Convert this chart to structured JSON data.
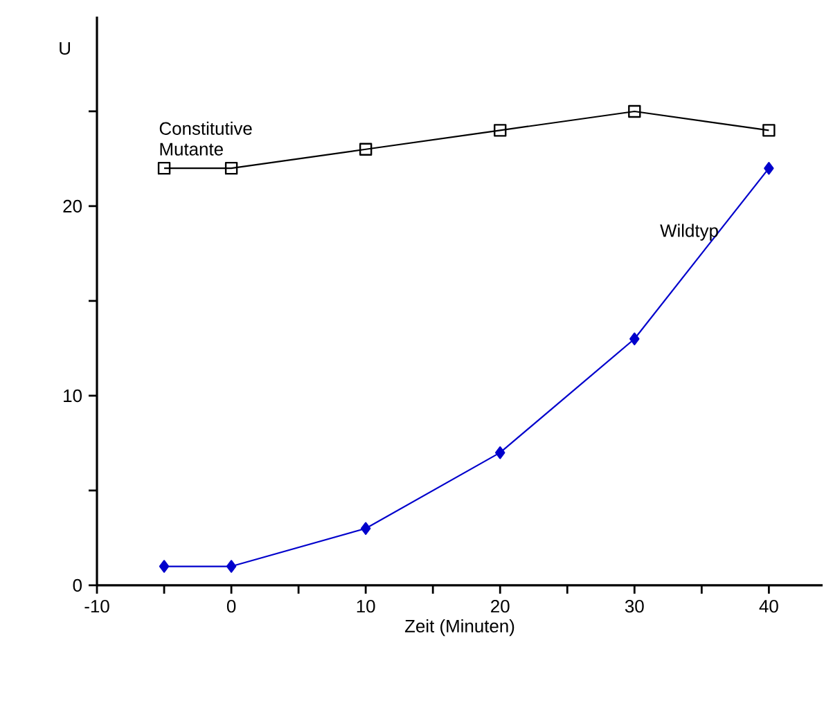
{
  "chart_data": {
    "type": "line",
    "xlabel": "Zeit (Minuten)",
    "ylabel": "U",
    "xlim": [
      -10,
      44
    ],
    "ylim": [
      0,
      30
    ],
    "xticks": [
      -10,
      {
        "value": -5,
        "label": null
      },
      0,
      {
        "value": 5,
        "label": null
      },
      10,
      {
        "value": 15,
        "label": null
      },
      20,
      {
        "value": 25,
        "label": null
      },
      30,
      {
        "value": 35,
        "label": null
      },
      40
    ],
    "yticks": [
      0,
      {
        "value": 5,
        "label": null
      },
      10,
      {
        "value": 15,
        "label": null
      },
      20,
      {
        "value": 25,
        "label": null
      }
    ],
    "grid": false,
    "line_style": "solid",
    "x": [
      -5,
      0,
      10,
      20,
      30,
      40
    ],
    "series": [
      {
        "name": "Constitutive Mutante",
        "color": "#000000",
        "marker": "square",
        "values": [
          22,
          22,
          23,
          24,
          25,
          24
        ]
      },
      {
        "name": "Wildtyp",
        "color": "#0000cc",
        "marker": "diamond",
        "values": [
          1,
          1,
          3,
          7,
          13,
          22
        ]
      }
    ]
  }
}
